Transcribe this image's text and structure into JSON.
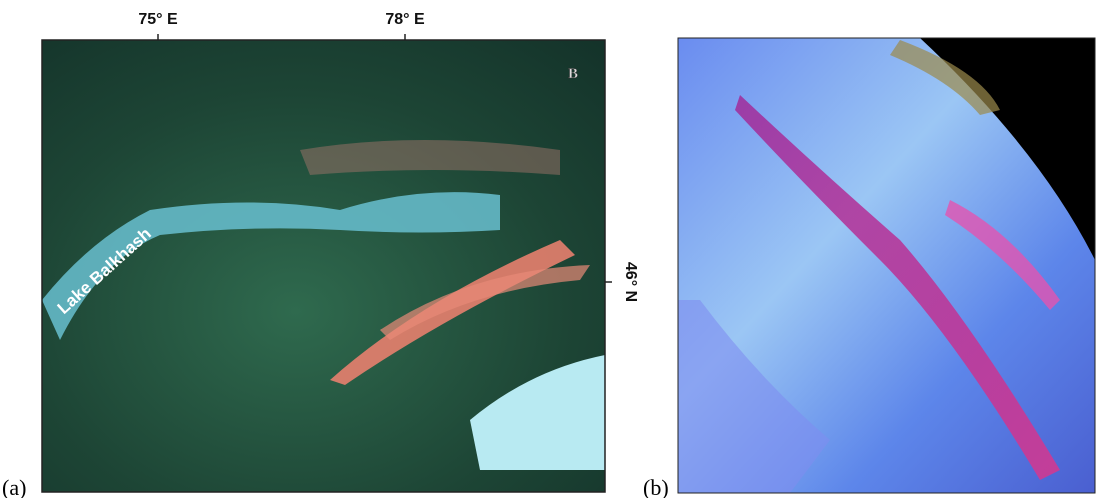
{
  "panel_a": {
    "label": "(a)",
    "longitude_labels": [
      "75° E",
      "78° E"
    ],
    "latitude_label": "46° N",
    "corner_label": "B",
    "lake_label": "Lake Balkhash"
  },
  "panel_b": {
    "label": "(b)"
  }
}
